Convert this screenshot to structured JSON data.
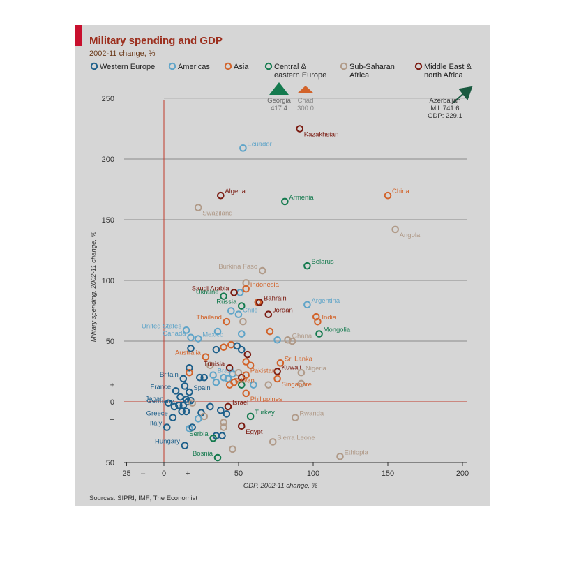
{
  "colors": {
    "western_europe": "#1d5f8a",
    "americas": "#5fa4c8",
    "asia": "#d2632a",
    "central_eastern_europe": "#147a4e",
    "sub_saharan_africa": "#b09a88",
    "middle_east_north_africa": "#7a1a10"
  },
  "chart_data": {
    "type": "scatter",
    "title": "Military spending and GDP",
    "subtitle": "2002-11 change, %",
    "xlabel": "GDP, 2002-11 change, %",
    "ylabel": "Military spending, 2002-11 change, %",
    "xlim": [
      -25,
      200
    ],
    "ylim": [
      -50,
      250
    ],
    "x_ticks": [
      "25",
      "–",
      "0",
      "+",
      "50",
      "100",
      "150",
      "200"
    ],
    "y_ticks": [
      "50",
      "–",
      "0",
      "+",
      "50",
      "100",
      "150",
      "200",
      "250"
    ],
    "grid": true,
    "legend_position": "top",
    "source": "Sources: SIPRI; IMF; The Economist",
    "legend": [
      {
        "key": "western_europe",
        "label": "Western Europe"
      },
      {
        "key": "americas",
        "label": "Americas"
      },
      {
        "key": "asia",
        "label": "Asia"
      },
      {
        "key": "central_eastern_europe",
        "label": "Central & eastern Europe"
      },
      {
        "key": "sub_saharan_africa",
        "label": "Sub-Saharan Africa"
      },
      {
        "key": "middle_east_north_africa",
        "label": "Middle East & north Africa"
      }
    ],
    "offchart": [
      {
        "name": "Georgia",
        "value": "417.4",
        "group": "central_eastern_europe"
      },
      {
        "name": "Chad",
        "value": "300.0",
        "group": "asia"
      },
      {
        "name": "Azerbaijan",
        "mil": "Mil: 741.6",
        "gdp": "GDP: 229.1",
        "group": "central_eastern_europe"
      }
    ],
    "labeled_points": [
      {
        "name": "Kazakhstan",
        "x": 91,
        "y": 225,
        "group": "middle_east_north_africa"
      },
      {
        "name": "Ecuador",
        "x": 53,
        "y": 209,
        "group": "americas"
      },
      {
        "name": "Algeria",
        "x": 38,
        "y": 170,
        "group": "middle_east_north_africa"
      },
      {
        "name": "Armenia",
        "x": 81,
        "y": 165,
        "group": "central_eastern_europe"
      },
      {
        "name": "China",
        "x": 150,
        "y": 170,
        "group": "asia"
      },
      {
        "name": "Swaziland",
        "x": 23,
        "y": 160,
        "group": "sub_saharan_africa"
      },
      {
        "name": "Angola",
        "x": 155,
        "y": 142,
        "group": "sub_saharan_africa"
      },
      {
        "name": "Belarus",
        "x": 96,
        "y": 112,
        "group": "central_eastern_europe"
      },
      {
        "name": "Burkina Faso",
        "x": 66,
        "y": 108,
        "group": "sub_saharan_africa"
      },
      {
        "name": "Saudi Arabia",
        "x": 47,
        "y": 90,
        "group": "middle_east_north_africa"
      },
      {
        "name": "Indonesia",
        "x": 55,
        "y": 93,
        "group": "asia"
      },
      {
        "name": "Ukraine",
        "x": 40,
        "y": 87,
        "group": "central_eastern_europe"
      },
      {
        "name": "Bahrain",
        "x": 64,
        "y": 82,
        "group": "middle_east_north_africa"
      },
      {
        "name": "Russia",
        "x": 52,
        "y": 79,
        "group": "central_eastern_europe"
      },
      {
        "name": "Argentina",
        "x": 96,
        "y": 80,
        "group": "americas"
      },
      {
        "name": "Chile",
        "x": 50,
        "y": 72,
        "group": "americas"
      },
      {
        "name": "Jordan",
        "x": 70,
        "y": 72,
        "group": "middle_east_north_africa"
      },
      {
        "name": "Thailand",
        "x": 42,
        "y": 66,
        "group": "asia"
      },
      {
        "name": "India",
        "x": 103,
        "y": 66,
        "group": "asia"
      },
      {
        "name": "United States",
        "x": 15,
        "y": 59,
        "group": "americas"
      },
      {
        "name": "Mongolia",
        "x": 104,
        "y": 56,
        "group": "central_eastern_europe"
      },
      {
        "name": "Canada",
        "x": 18,
        "y": 53,
        "group": "americas"
      },
      {
        "name": "Mexico",
        "x": 23,
        "y": 52,
        "group": "americas"
      },
      {
        "name": "Ghana",
        "x": 83,
        "y": 51,
        "group": "sub_saharan_africa"
      },
      {
        "name": "Australia",
        "x": 28,
        "y": 37,
        "group": "asia"
      },
      {
        "name": "Sri Lanka",
        "x": 78,
        "y": 32,
        "group": "asia"
      },
      {
        "name": "Tunisia",
        "x": 44,
        "y": 28,
        "group": "middle_east_north_africa"
      },
      {
        "name": "Kuwait",
        "x": 76,
        "y": 25,
        "group": "middle_east_north_africa"
      },
      {
        "name": "Brazil",
        "x": 33,
        "y": 22,
        "group": "americas"
      },
      {
        "name": "Nigeria",
        "x": 92,
        "y": 24,
        "group": "sub_saharan_africa"
      },
      {
        "name": "Pakistan",
        "x": 55,
        "y": 22,
        "group": "asia"
      },
      {
        "name": "Britain",
        "x": 13,
        "y": 19,
        "group": "western_europe"
      },
      {
        "name": "Spain",
        "x": 17,
        "y": 8,
        "group": "western_europe"
      },
      {
        "name": "France",
        "x": 8,
        "y": 9,
        "group": "western_europe"
      },
      {
        "name": "Taiwan",
        "x": 44,
        "y": 14,
        "group": "asia"
      },
      {
        "name": "Singapore",
        "x": 76,
        "y": 19,
        "group": "asia"
      },
      {
        "name": "Philippines",
        "x": 55,
        "y": 7,
        "group": "asia"
      },
      {
        "name": "Japan",
        "x": 3,
        "y": -1,
        "group": "western_europe"
      },
      {
        "name": "Israel",
        "x": 43,
        "y": -4,
        "group": "middle_east_north_africa"
      },
      {
        "name": "Germany",
        "x": 10,
        "y": -3,
        "group": "western_europe"
      },
      {
        "name": "Turkey",
        "x": 58,
        "y": -12,
        "group": "central_eastern_europe"
      },
      {
        "name": "Rwanda",
        "x": 88,
        "y": -13,
        "group": "sub_saharan_africa"
      },
      {
        "name": "Greece",
        "x": 6,
        "y": -13,
        "group": "western_europe"
      },
      {
        "name": "Egypt",
        "x": 52,
        "y": -20,
        "group": "middle_east_north_africa"
      },
      {
        "name": "Italy",
        "x": 2,
        "y": -21,
        "group": "western_europe"
      },
      {
        "name": "Serbia",
        "x": 33,
        "y": -30,
        "group": "central_eastern_europe"
      },
      {
        "name": "Sierra Leone",
        "x": 73,
        "y": -33,
        "group": "sub_saharan_africa"
      },
      {
        "name": "Hungary",
        "x": 14,
        "y": -36,
        "group": "western_europe"
      },
      {
        "name": "Bosnia",
        "x": 36,
        "y": -46,
        "group": "central_eastern_europe"
      },
      {
        "name": "Ethiopia",
        "x": 118,
        "y": -45,
        "group": "sub_saharan_africa"
      }
    ],
    "unlabeled_points": [
      {
        "x": 55,
        "y": 98,
        "group": "sub_saharan_africa"
      },
      {
        "x": 51,
        "y": 90,
        "group": "americas"
      },
      {
        "x": 63,
        "y": 82,
        "group": "asia"
      },
      {
        "x": 45,
        "y": 75,
        "group": "americas"
      },
      {
        "x": 53,
        "y": 66,
        "group": "sub_saharan_africa"
      },
      {
        "x": 36,
        "y": 58,
        "group": "americas"
      },
      {
        "x": 52,
        "y": 56,
        "group": "americas"
      },
      {
        "x": 71,
        "y": 58,
        "group": "asia"
      },
      {
        "x": 102,
        "y": 70,
        "group": "asia"
      },
      {
        "x": 76,
        "y": 51,
        "group": "americas"
      },
      {
        "x": 86,
        "y": 50,
        "group": "sub_saharan_africa"
      },
      {
        "x": 18,
        "y": 44,
        "group": "western_europe"
      },
      {
        "x": 35,
        "y": 43,
        "group": "western_europe"
      },
      {
        "x": 40,
        "y": 45,
        "group": "asia"
      },
      {
        "x": 45,
        "y": 47,
        "group": "asia"
      },
      {
        "x": 49,
        "y": 46,
        "group": "western_europe"
      },
      {
        "x": 52,
        "y": 43,
        "group": "western_europe"
      },
      {
        "x": 56,
        "y": 39,
        "group": "middle_east_north_africa"
      },
      {
        "x": 31,
        "y": 30,
        "group": "sub_saharan_africa"
      },
      {
        "x": 55,
        "y": 33,
        "group": "asia"
      },
      {
        "x": 58,
        "y": 30,
        "group": "asia"
      },
      {
        "x": 17,
        "y": 28,
        "group": "western_europe"
      },
      {
        "x": 17,
        "y": 24,
        "group": "asia"
      },
      {
        "x": 24,
        "y": 20,
        "group": "western_europe"
      },
      {
        "x": 27,
        "y": 20,
        "group": "western_europe"
      },
      {
        "x": 40,
        "y": 20,
        "group": "americas"
      },
      {
        "x": 46,
        "y": 23,
        "group": "americas"
      },
      {
        "x": 50,
        "y": 24,
        "group": "sub_saharan_africa"
      },
      {
        "x": 52,
        "y": 20,
        "group": "middle_east_north_africa"
      },
      {
        "x": 35,
        "y": 16,
        "group": "americas"
      },
      {
        "x": 43,
        "y": 19,
        "group": "americas"
      },
      {
        "x": 47,
        "y": 16,
        "group": "asia"
      },
      {
        "x": 52,
        "y": 14,
        "group": "central_eastern_europe"
      },
      {
        "x": 60,
        "y": 14,
        "group": "americas"
      },
      {
        "x": 70,
        "y": 14,
        "group": "sub_saharan_africa"
      },
      {
        "x": 92,
        "y": 15,
        "group": "sub_saharan_africa"
      },
      {
        "x": 14,
        "y": 13,
        "group": "western_europe"
      },
      {
        "x": 11,
        "y": 4,
        "group": "western_europe"
      },
      {
        "x": 15,
        "y": 2,
        "group": "western_europe"
      },
      {
        "x": 18,
        "y": 1,
        "group": "western_europe"
      },
      {
        "x": 7,
        "y": -4,
        "group": "western_europe"
      },
      {
        "x": 13,
        "y": -3,
        "group": "western_europe"
      },
      {
        "x": 16,
        "y": 0,
        "group": "western_europe"
      },
      {
        "x": 19,
        "y": -1,
        "group": "sub_saharan_africa"
      },
      {
        "x": 12,
        "y": -8,
        "group": "western_europe"
      },
      {
        "x": 15,
        "y": -8,
        "group": "western_europe"
      },
      {
        "x": 25,
        "y": -9,
        "group": "western_europe"
      },
      {
        "x": 31,
        "y": -4,
        "group": "western_europe"
      },
      {
        "x": 38,
        "y": -7,
        "group": "western_europe"
      },
      {
        "x": 42,
        "y": -10,
        "group": "western_europe"
      },
      {
        "x": 27,
        "y": -12,
        "group": "sub_saharan_africa"
      },
      {
        "x": 23,
        "y": -14,
        "group": "americas"
      },
      {
        "x": 40,
        "y": -17,
        "group": "sub_saharan_africa"
      },
      {
        "x": 40,
        "y": -21,
        "group": "sub_saharan_africa"
      },
      {
        "x": 17,
        "y": -22,
        "group": "americas"
      },
      {
        "x": 19,
        "y": -21,
        "group": "western_europe"
      },
      {
        "x": 35,
        "y": -28,
        "group": "western_europe"
      },
      {
        "x": 39,
        "y": -28,
        "group": "western_europe"
      },
      {
        "x": 46,
        "y": -39,
        "group": "sub_saharan_africa"
      }
    ]
  }
}
